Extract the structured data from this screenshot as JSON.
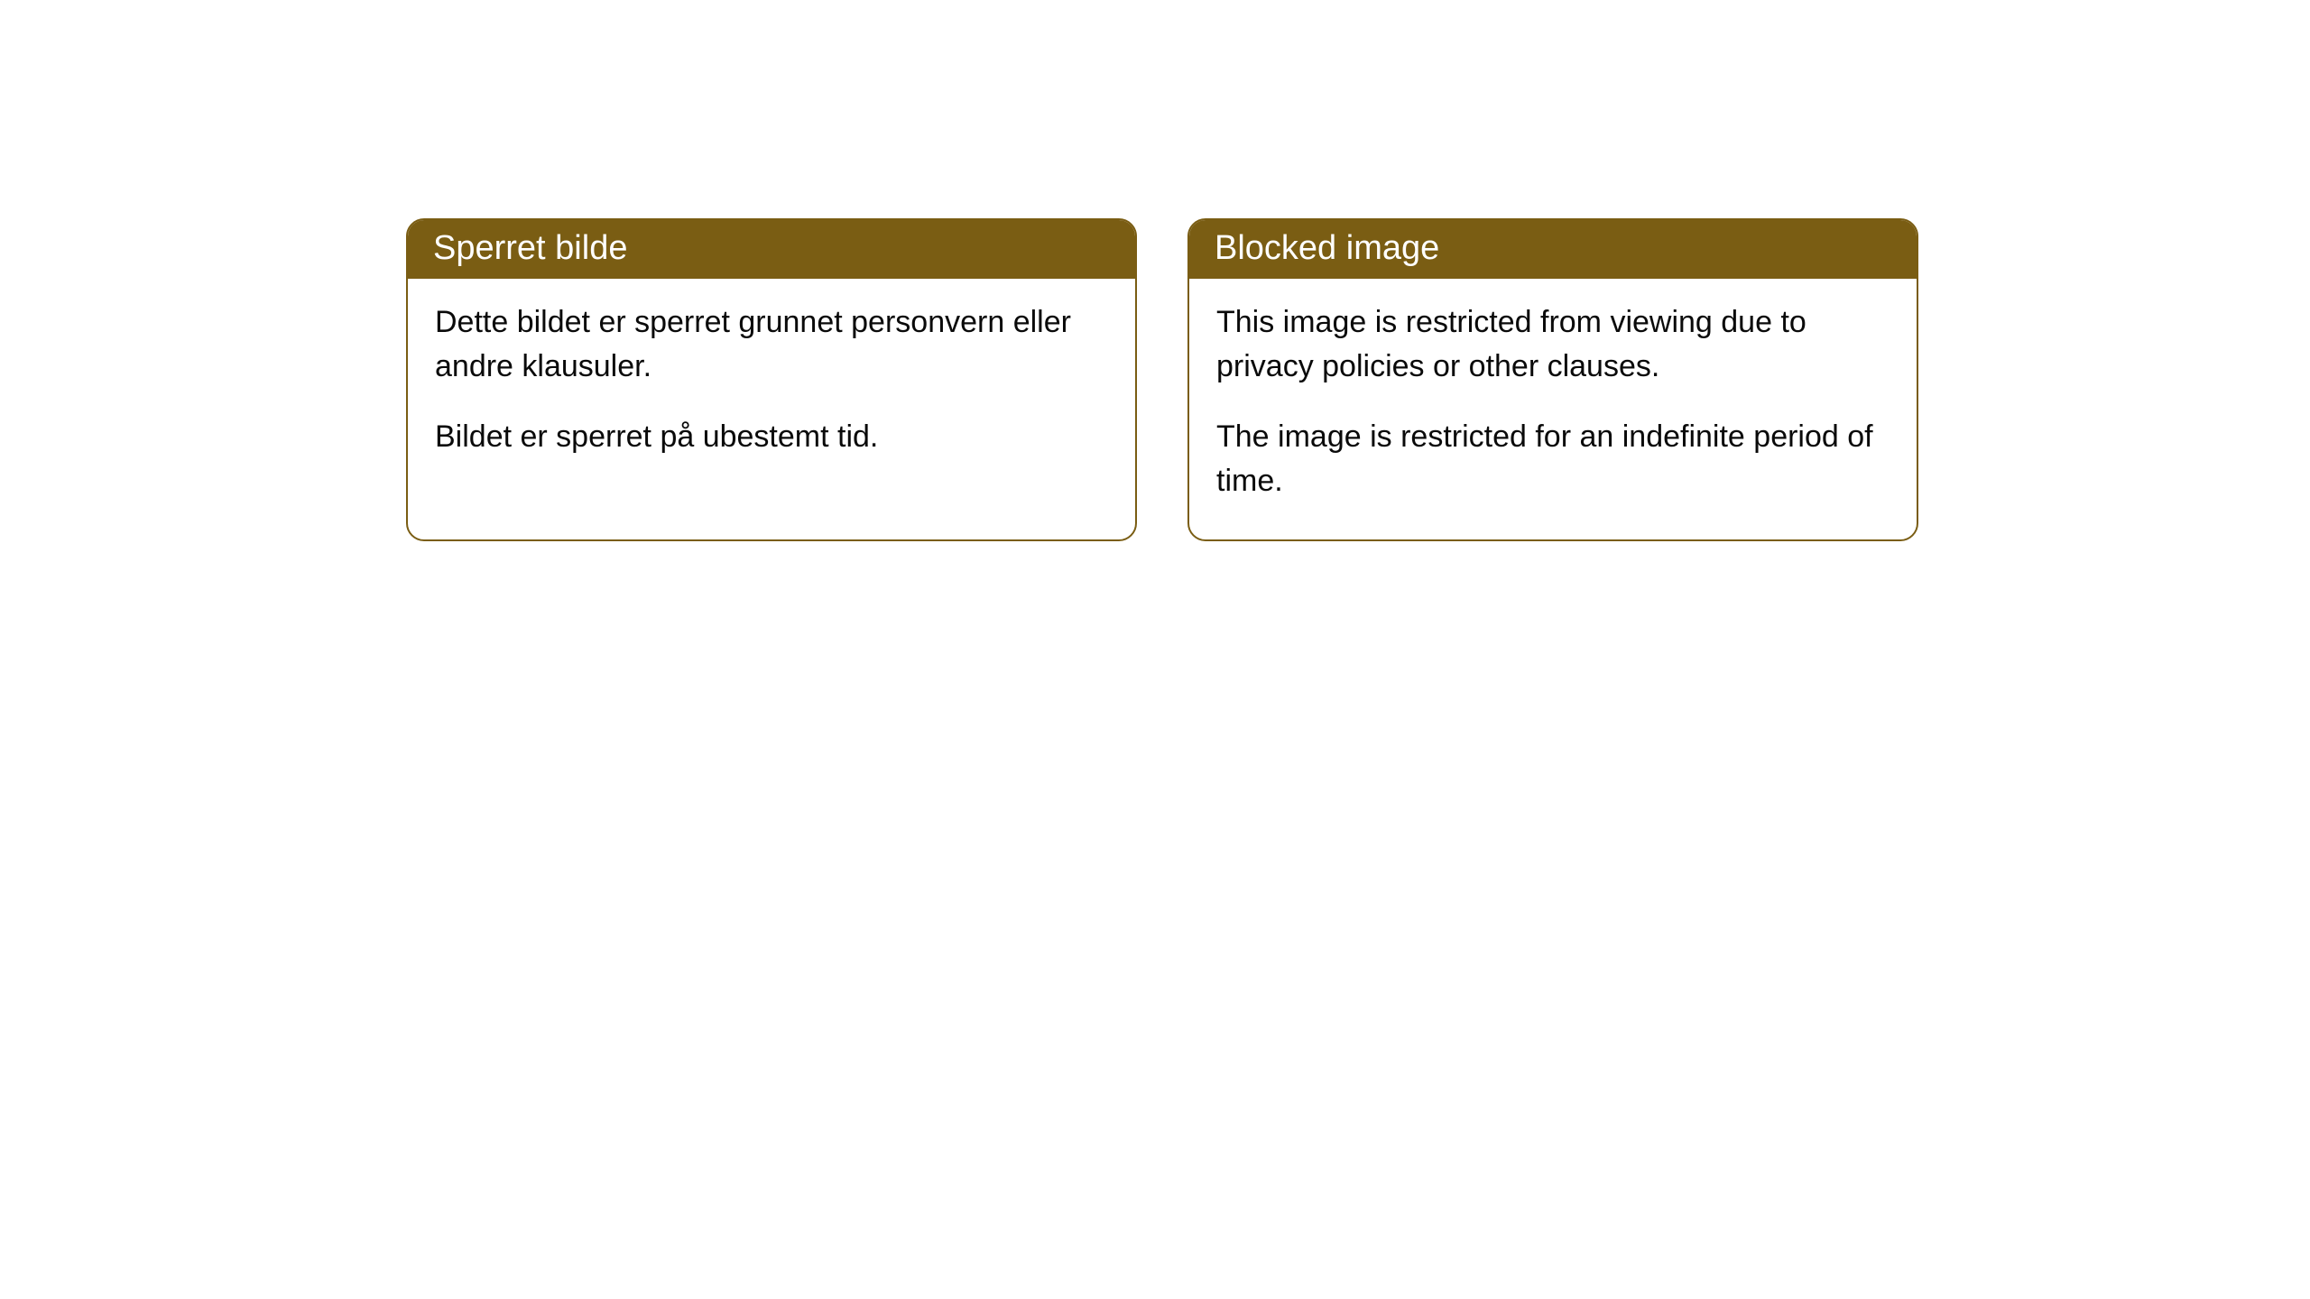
{
  "cards": [
    {
      "title": "Sperret bilde",
      "paragraph1": "Dette bildet er sperret grunnet personvern eller andre klausuler.",
      "paragraph2": "Bildet er sperret på ubestemt tid."
    },
    {
      "title": "Blocked image",
      "paragraph1": "This image is restricted from viewing due to privacy policies or other clauses.",
      "paragraph2": "The image is restricted for an indefinite period of time."
    }
  ],
  "style": {
    "header_bg_color": "#7a5d13",
    "header_text_color": "#ffffff",
    "border_color": "#7a5d13",
    "body_bg_color": "#ffffff",
    "body_text_color": "#0a0a0a",
    "border_radius": 20,
    "title_fontsize": 38,
    "body_fontsize": 34
  }
}
